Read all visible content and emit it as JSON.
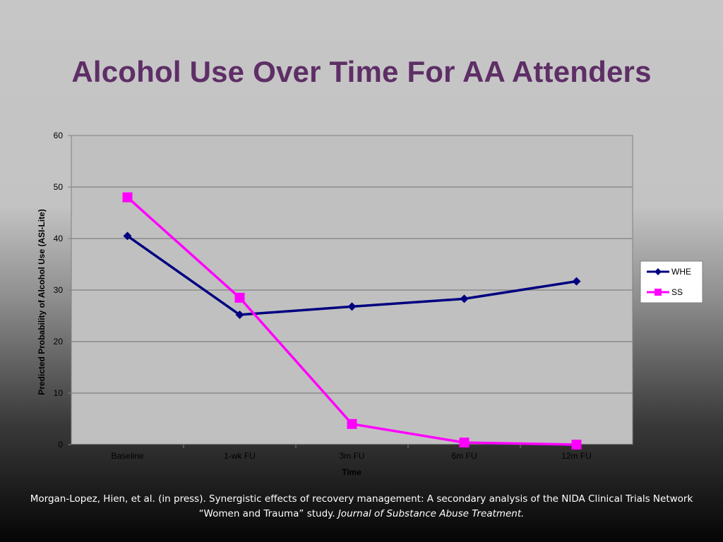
{
  "slide": {
    "title": "Alcohol Use Over Time For AA Attenders"
  },
  "chart_data": {
    "type": "line",
    "xlabel": "Time",
    "ylabel": "Predicted Probability of Alcohol Use (ASI-Lite)",
    "categories": [
      "Baseline",
      "1-wk FU",
      "3m FU",
      "6m FU",
      "12m FU"
    ],
    "ylim": [
      0,
      60
    ],
    "yticks": [
      0,
      10,
      20,
      30,
      40,
      50,
      60
    ],
    "grid": true,
    "legend_position": "right",
    "plot_background": "#c0c0c0",
    "series": [
      {
        "name": "WHE",
        "values": [
          40.5,
          25.2,
          26.8,
          28.3,
          31.7
        ],
        "color": "#000080",
        "marker": "diamond"
      },
      {
        "name": "SS",
        "values": [
          48.0,
          28.5,
          4.0,
          0.4,
          0.0
        ],
        "color": "#ff00ff",
        "marker": "square"
      }
    ]
  },
  "citation": {
    "text": "Morgan-Lopez, Hien,  et  al.  (in press). Synergistic effects of recovery management: A secondary analysis of the NIDA Clinical Trials Network “Women and Trauma” study. ",
    "journal": "Journal of Substance Abuse Treatment."
  }
}
